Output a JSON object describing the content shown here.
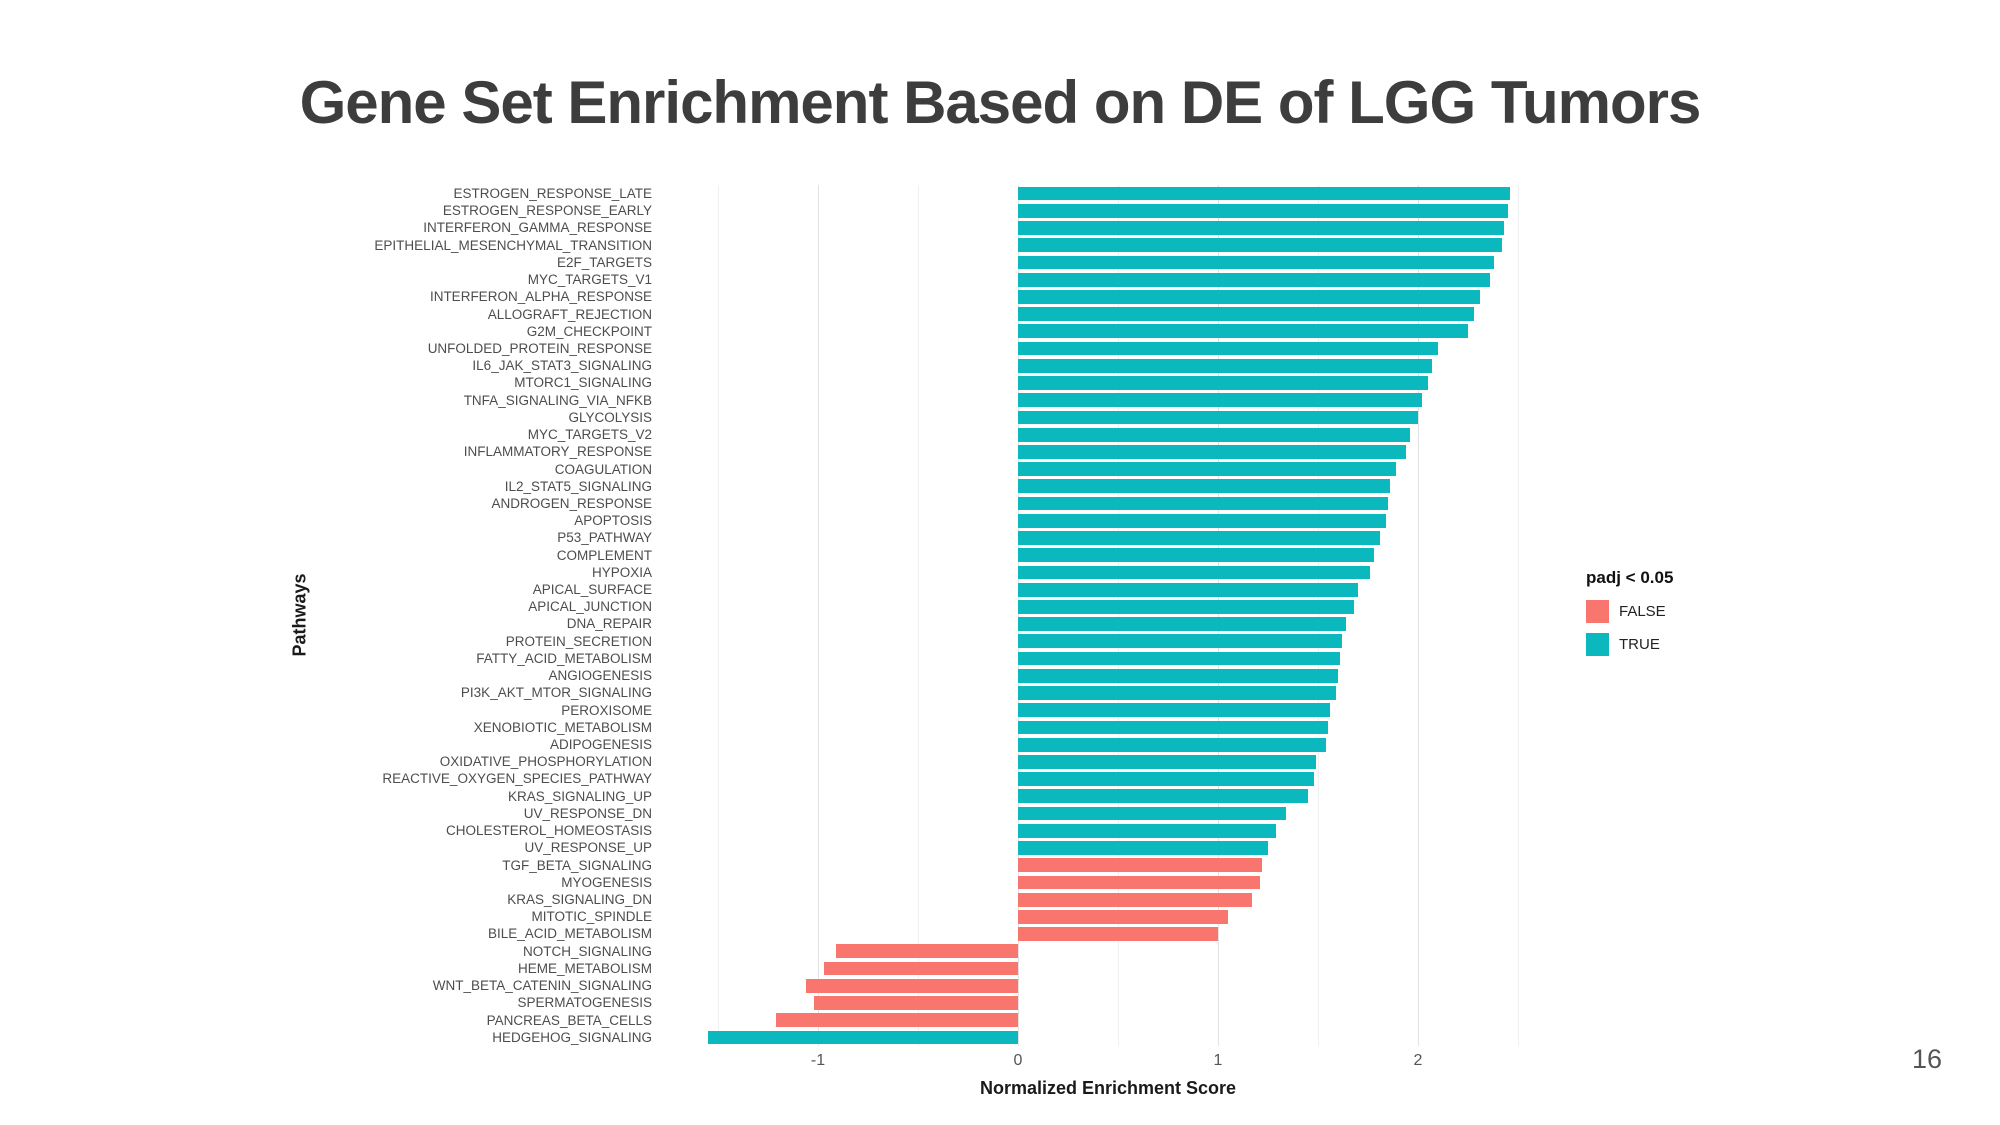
{
  "slide": {
    "title": "Gene Set Enrichment Based on DE of LGG Tumors",
    "page_number": "16"
  },
  "chart_data": {
    "type": "bar",
    "orientation": "horizontal",
    "title": "Gene Set Enrichment Based on DE of LGG Tumors",
    "xlabel": "Normalized Enrichment Score",
    "ylabel": "Pathways",
    "xlim": [
      -1.77,
      2.67
    ],
    "x_ticks": [
      -1,
      0,
      1,
      2
    ],
    "x_grid_minor": [
      -1.5,
      -0.5,
      0.5,
      1.5,
      2.5
    ],
    "grid": true,
    "legend": {
      "title": "padj < 0.05",
      "position": "right",
      "entries": [
        {
          "label": "FALSE",
          "color": "#F8766D"
        },
        {
          "label": "TRUE",
          "color": "#0BB8BD"
        }
      ]
    },
    "pathways": [
      {
        "name": "ESTROGEN_RESPONSE_LATE",
        "nes": 2.46,
        "significant": true
      },
      {
        "name": "ESTROGEN_RESPONSE_EARLY",
        "nes": 2.45,
        "significant": true
      },
      {
        "name": "INTERFERON_GAMMA_RESPONSE",
        "nes": 2.43,
        "significant": true
      },
      {
        "name": "EPITHELIAL_MESENCHYMAL_TRANSITION",
        "nes": 2.42,
        "significant": true
      },
      {
        "name": "E2F_TARGETS",
        "nes": 2.38,
        "significant": true
      },
      {
        "name": "MYC_TARGETS_V1",
        "nes": 2.36,
        "significant": true
      },
      {
        "name": "INTERFERON_ALPHA_RESPONSE",
        "nes": 2.31,
        "significant": true
      },
      {
        "name": "ALLOGRAFT_REJECTION",
        "nes": 2.28,
        "significant": true
      },
      {
        "name": "G2M_CHECKPOINT",
        "nes": 2.25,
        "significant": true
      },
      {
        "name": "UNFOLDED_PROTEIN_RESPONSE",
        "nes": 2.1,
        "significant": true
      },
      {
        "name": "IL6_JAK_STAT3_SIGNALING",
        "nes": 2.07,
        "significant": true
      },
      {
        "name": "MTORC1_SIGNALING",
        "nes": 2.05,
        "significant": true
      },
      {
        "name": "TNFA_SIGNALING_VIA_NFKB",
        "nes": 2.02,
        "significant": true
      },
      {
        "name": "GLYCOLYSIS",
        "nes": 2.0,
        "significant": true
      },
      {
        "name": "MYC_TARGETS_V2",
        "nes": 1.96,
        "significant": true
      },
      {
        "name": "INFLAMMATORY_RESPONSE",
        "nes": 1.94,
        "significant": true
      },
      {
        "name": "COAGULATION",
        "nes": 1.89,
        "significant": true
      },
      {
        "name": "IL2_STAT5_SIGNALING",
        "nes": 1.86,
        "significant": true
      },
      {
        "name": "ANDROGEN_RESPONSE",
        "nes": 1.85,
        "significant": true
      },
      {
        "name": "APOPTOSIS",
        "nes": 1.84,
        "significant": true
      },
      {
        "name": "P53_PATHWAY",
        "nes": 1.81,
        "significant": true
      },
      {
        "name": "COMPLEMENT",
        "nes": 1.78,
        "significant": true
      },
      {
        "name": "HYPOXIA",
        "nes": 1.76,
        "significant": true
      },
      {
        "name": "APICAL_SURFACE",
        "nes": 1.7,
        "significant": true
      },
      {
        "name": "APICAL_JUNCTION",
        "nes": 1.68,
        "significant": true
      },
      {
        "name": "DNA_REPAIR",
        "nes": 1.64,
        "significant": true
      },
      {
        "name": "PROTEIN_SECRETION",
        "nes": 1.62,
        "significant": true
      },
      {
        "name": "FATTY_ACID_METABOLISM",
        "nes": 1.61,
        "significant": true
      },
      {
        "name": "ANGIOGENESIS",
        "nes": 1.6,
        "significant": true
      },
      {
        "name": "PI3K_AKT_MTOR_SIGNALING",
        "nes": 1.59,
        "significant": true
      },
      {
        "name": "PEROXISOME",
        "nes": 1.56,
        "significant": true
      },
      {
        "name": "XENOBIOTIC_METABOLISM",
        "nes": 1.55,
        "significant": true
      },
      {
        "name": "ADIPOGENESIS",
        "nes": 1.54,
        "significant": true
      },
      {
        "name": "OXIDATIVE_PHOSPHORYLATION",
        "nes": 1.49,
        "significant": true
      },
      {
        "name": "REACTIVE_OXYGEN_SPECIES_PATHWAY",
        "nes": 1.48,
        "significant": true
      },
      {
        "name": "KRAS_SIGNALING_UP",
        "nes": 1.45,
        "significant": true
      },
      {
        "name": "UV_RESPONSE_DN",
        "nes": 1.34,
        "significant": true
      },
      {
        "name": "CHOLESTEROL_HOMEOSTASIS",
        "nes": 1.29,
        "significant": true
      },
      {
        "name": "UV_RESPONSE_UP",
        "nes": 1.25,
        "significant": true
      },
      {
        "name": "TGF_BETA_SIGNALING",
        "nes": 1.22,
        "significant": false
      },
      {
        "name": "MYOGENESIS",
        "nes": 1.21,
        "significant": false
      },
      {
        "name": "KRAS_SIGNALING_DN",
        "nes": 1.17,
        "significant": false
      },
      {
        "name": "MITOTIC_SPINDLE",
        "nes": 1.05,
        "significant": false
      },
      {
        "name": "BILE_ACID_METABOLISM",
        "nes": 1.0,
        "significant": false
      },
      {
        "name": "NOTCH_SIGNALING",
        "nes": -0.91,
        "significant": false
      },
      {
        "name": "HEME_METABOLISM",
        "nes": -0.97,
        "significant": false
      },
      {
        "name": "WNT_BETA_CATENIN_SIGNALING",
        "nes": -1.06,
        "significant": false
      },
      {
        "name": "SPERMATOGENESIS",
        "nes": -1.02,
        "significant": false
      },
      {
        "name": "PANCREAS_BETA_CELLS",
        "nes": -1.21,
        "significant": false
      },
      {
        "name": "HEDGEHOG_SIGNALING",
        "nes": -1.55,
        "significant": true
      }
    ]
  }
}
